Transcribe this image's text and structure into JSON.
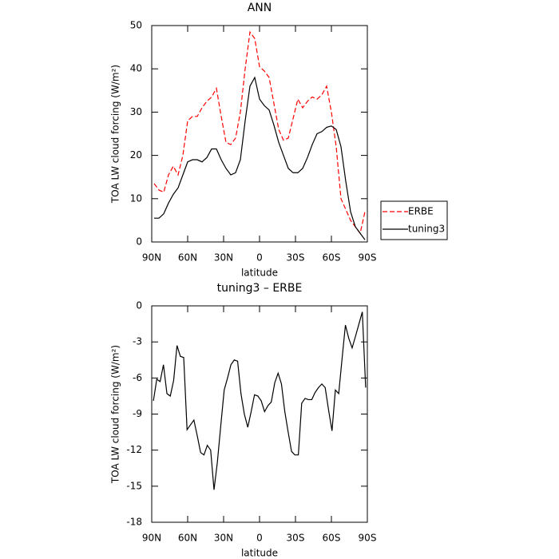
{
  "chart_data": [
    {
      "type": "line",
      "title": "ANN",
      "xlabel": "latitude",
      "ylabel": "TOA LW cloud forcing (W/m²)",
      "x": [
        88,
        84,
        80,
        76,
        72,
        68,
        64,
        60,
        56,
        52,
        48,
        44,
        40,
        36,
        32,
        28,
        24,
        20,
        16,
        12,
        8,
        4,
        0,
        -4,
        -8,
        -12,
        -16,
        -20,
        -24,
        -28,
        -32,
        -36,
        -40,
        -44,
        -48,
        -52,
        -56,
        -60,
        -64,
        -68,
        -72,
        -76,
        -80,
        -84,
        -88
      ],
      "series": [
        {
          "name": "ERBE",
          "color": "#ff0000",
          "linestyle": "dashed",
          "values": [
            13.5,
            12,
            11.5,
            15.5,
            17.5,
            15.5,
            20,
            28,
            29,
            29,
            31,
            32.5,
            33.5,
            35.5,
            29,
            23,
            22.5,
            24,
            30,
            40,
            48.5,
            47,
            40.5,
            39.5,
            38,
            32,
            26,
            23.5,
            24,
            28.5,
            33,
            31,
            32.5,
            33.5,
            33,
            34,
            36,
            30,
            22,
            10,
            7.5,
            5,
            3.5,
            2,
            7
          ]
        },
        {
          "name": "tuning3",
          "color": "#000000",
          "linestyle": "solid",
          "values": [
            5.5,
            5.5,
            6.5,
            9,
            11,
            12.5,
            15.5,
            18.5,
            19,
            19,
            18.5,
            19.5,
            21.5,
            21.5,
            19,
            17,
            15.5,
            16,
            19,
            28,
            36,
            38,
            33,
            31.5,
            30.5,
            27,
            23,
            20,
            17,
            16,
            16,
            17,
            19.5,
            22.5,
            25,
            25.5,
            26.5,
            26.8,
            26,
            22,
            14,
            7,
            3.5,
            2,
            0.5
          ]
        }
      ],
      "xlim": [
        90,
        -90
      ],
      "ylim": [
        0,
        50
      ],
      "xticks": [
        {
          "value": 90,
          "label": "90N"
        },
        {
          "value": 60,
          "label": "60N"
        },
        {
          "value": 30,
          "label": "30N"
        },
        0,
        {
          "value": -30,
          "label": "30S"
        },
        {
          "value": -60,
          "label": "60S"
        },
        {
          "value": -90,
          "label": "90S"
        }
      ],
      "yticks": [
        0,
        10,
        20,
        30,
        40,
        50
      ],
      "legend": "right"
    },
    {
      "type": "line",
      "title": "tuning3 – ERBE",
      "xlabel": "latitude",
      "ylabel": "TOA LW cloud forcing (W/m²)",
      "x": [
        88.6,
        85.8,
        83.0,
        80.2,
        77.3,
        74.5,
        71.7,
        68.9,
        66.1,
        63.3,
        60.5,
        57.7,
        54.8,
        52.0,
        49.2,
        46.4,
        43.6,
        40.8,
        38.0,
        35.2,
        32.4,
        29.5,
        26.7,
        23.9,
        21.1,
        18.3,
        15.5,
        12.7,
        9.8,
        7.0,
        4.2,
        1.4,
        -1.4,
        -4.2,
        -7.0,
        -9.8,
        -12.7,
        -15.5,
        -18.3,
        -21.1,
        -23.9,
        -26.7,
        -29.5,
        -32.4,
        -35.2,
        -38.0,
        -40.8,
        -43.6,
        -46.4,
        -49.2,
        -52.0,
        -54.8,
        -57.7,
        -60.5,
        -63.3,
        -66.1,
        -68.9,
        -71.7,
        -74.5,
        -77.3,
        -80.2,
        -83.0,
        -85.8,
        -88.6
      ],
      "series": [
        {
          "name": null,
          "color": "#000000",
          "linestyle": "solid",
          "values": [
            -7.9,
            -6.1,
            -6.3,
            -4.9,
            -7.3,
            -7.5,
            -6.2,
            -3.3,
            -4.2,
            -4.3,
            -10.3,
            -9.9,
            -9.5,
            -10.8,
            -12.2,
            -12.4,
            -11.6,
            -12,
            -15.3,
            -13,
            -10,
            -7,
            -6,
            -4.9,
            -4.5,
            -4.6,
            -7.3,
            -9,
            -10.1,
            -8.8,
            -7.4,
            -7.5,
            -7.9,
            -8.8,
            -8.3,
            -8,
            -6.4,
            -5.6,
            -6.5,
            -8.8,
            -10.5,
            -12.1,
            -12.4,
            -12.4,
            -8.1,
            -7.7,
            -7.8,
            -7.8,
            -7.2,
            -6.8,
            -6.5,
            -6.8,
            -8.7,
            -10.4,
            -7,
            -7.3,
            -4.4,
            -1.6,
            -2.7,
            -3.5,
            -2.5,
            -1.5,
            -0.5,
            -6.8
          ]
        }
      ],
      "xlim": [
        90,
        -90
      ],
      "ylim": [
        -18,
        0
      ],
      "xticks": [
        {
          "value": 90,
          "label": "90N"
        },
        {
          "value": 60,
          "label": "60N"
        },
        {
          "value": 30,
          "label": "30N"
        },
        0,
        {
          "value": -30,
          "label": "30S"
        },
        {
          "value": -60,
          "label": "60S"
        },
        {
          "value": -90,
          "label": "90S"
        }
      ],
      "yticks": [
        -18,
        -15,
        -12,
        -9,
        -6,
        -3,
        0
      ]
    }
  ]
}
